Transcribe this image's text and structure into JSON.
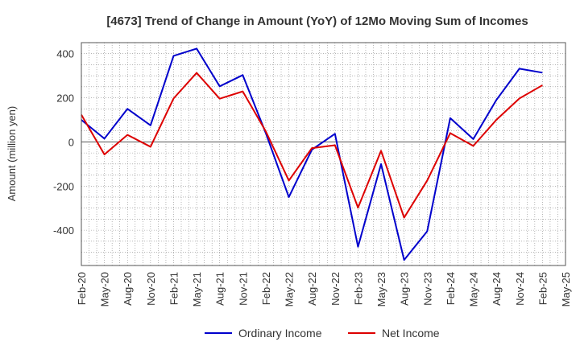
{
  "chart_data": {
    "type": "line",
    "title": "[4673]  Trend of Change in Amount (YoY) of 12Mo Moving Sum of Incomes",
    "xlabel": "",
    "ylabel": "Amount (million yen)",
    "ylim": [
      -560,
      450
    ],
    "yticks": [
      400,
      200,
      0,
      -200,
      -400
    ],
    "grid": true,
    "legend_position": "bottom",
    "categories": [
      "Feb-20",
      "May-20",
      "Aug-20",
      "Nov-20",
      "Feb-21",
      "May-21",
      "Aug-21",
      "Nov-21",
      "Feb-22",
      "May-22",
      "Aug-22",
      "Nov-22",
      "Feb-23",
      "May-23",
      "Aug-23",
      "Nov-23",
      "Feb-24",
      "May-24",
      "Aug-24",
      "Nov-24",
      "Feb-25",
      "May-25"
    ],
    "series": [
      {
        "name": "Ordinary Income",
        "color": "#0000cc",
        "values": [
          100,
          15,
          150,
          75,
          390,
          423,
          252,
          303,
          40,
          -250,
          -35,
          37,
          -475,
          -100,
          -535,
          -405,
          108,
          13,
          190,
          332,
          314,
          null
        ]
      },
      {
        "name": "Net Income",
        "color": "#dd0000",
        "values": [
          123,
          -57,
          32,
          -22,
          197,
          313,
          196,
          229,
          48,
          -175,
          -28,
          -15,
          -298,
          -40,
          -343,
          -175,
          40,
          -18,
          100,
          197,
          257,
          null
        ]
      }
    ]
  }
}
